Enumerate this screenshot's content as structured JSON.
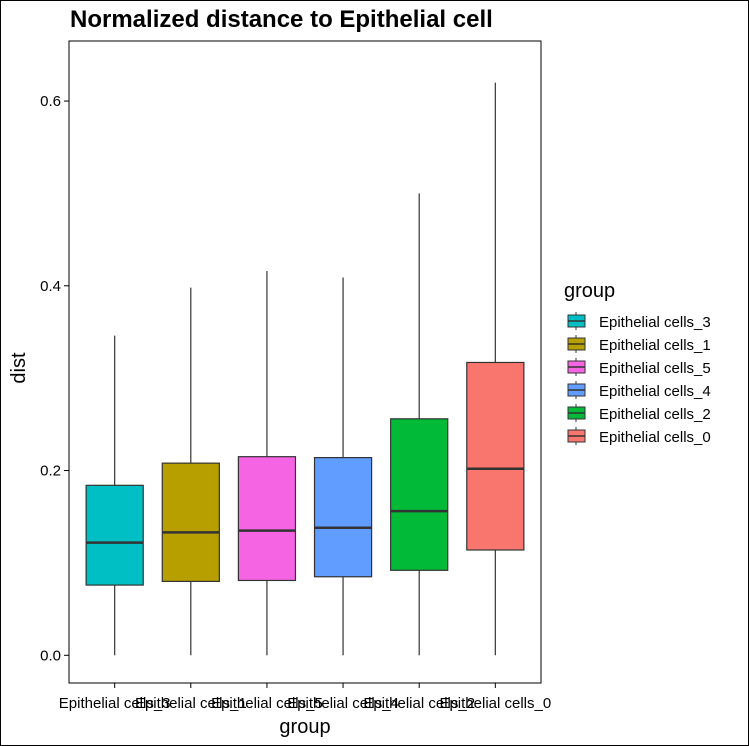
{
  "chart_data": {
    "type": "boxplot",
    "title": "Normalized distance to Epithelial cell",
    "xlabel": "group",
    "ylabel": "dist",
    "ylim": [
      -0.03,
      0.665
    ],
    "yticks": [
      0.0,
      0.2,
      0.4,
      0.6
    ],
    "ytick_labels": [
      "0.0",
      "0.2",
      "0.4",
      "0.6"
    ],
    "grid": false,
    "legend_position": "right",
    "legend_title": "group",
    "categories": [
      "Epithelial cells_3",
      "Epithelial cells_1",
      "Epithelial cells_5",
      "Epithelial cells_4",
      "Epithelial cells_2",
      "Epithelial cells_0"
    ],
    "boxes": [
      {
        "group": "Epithelial cells_3",
        "min": 0.0,
        "q1": 0.076,
        "median": 0.122,
        "q3": 0.184,
        "max": 0.346,
        "color": "#00BFC4"
      },
      {
        "group": "Epithelial cells_1",
        "min": 0.0,
        "q1": 0.08,
        "median": 0.133,
        "q3": 0.208,
        "max": 0.398,
        "color": "#B79F00"
      },
      {
        "group": "Epithelial cells_5",
        "min": 0.0,
        "q1": 0.081,
        "median": 0.135,
        "q3": 0.215,
        "max": 0.416,
        "color": "#F564E3"
      },
      {
        "group": "Epithelial cells_4",
        "min": 0.0,
        "q1": 0.085,
        "median": 0.138,
        "q3": 0.214,
        "max": 0.409,
        "color": "#619CFF"
      },
      {
        "group": "Epithelial cells_2",
        "min": 0.0,
        "q1": 0.092,
        "median": 0.156,
        "q3": 0.256,
        "max": 0.5,
        "color": "#00BA38"
      },
      {
        "group": "Epithelial cells_0",
        "min": 0.0,
        "q1": 0.114,
        "median": 0.202,
        "q3": 0.317,
        "max": 0.62,
        "color": "#F8766D"
      }
    ]
  }
}
